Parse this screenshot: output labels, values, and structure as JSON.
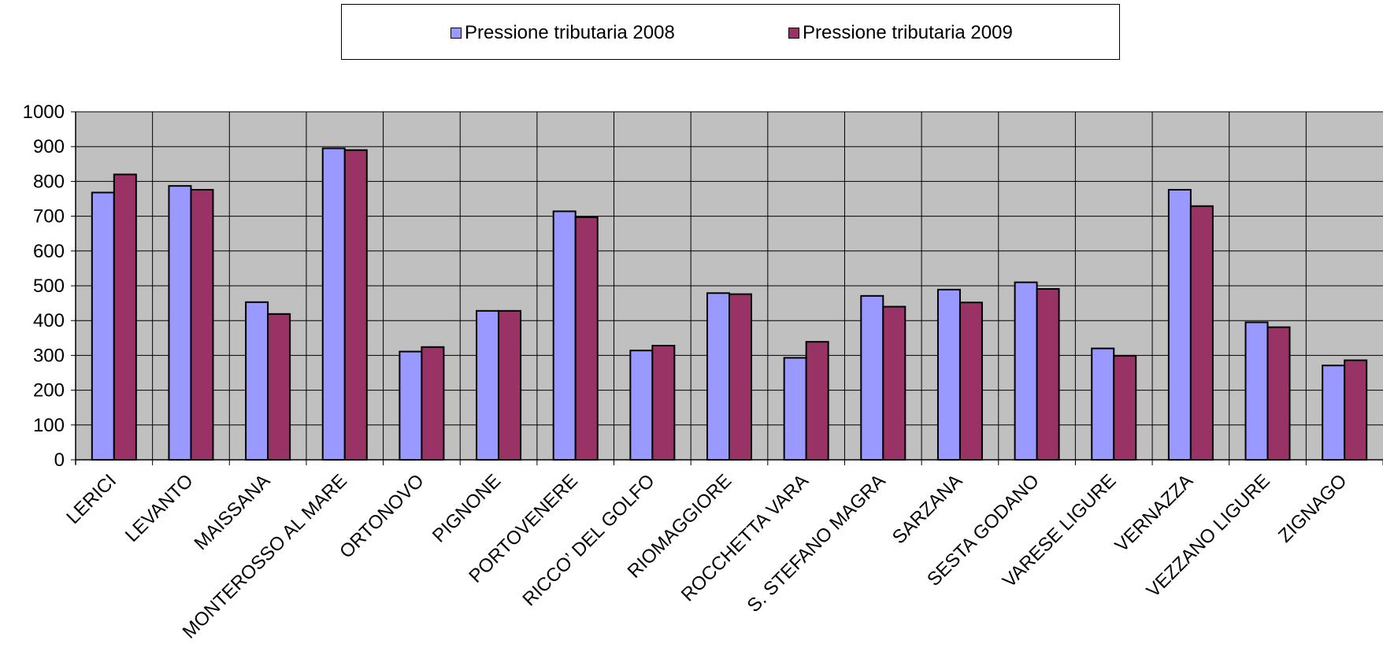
{
  "chart_data": {
    "type": "bar",
    "categories": [
      "LERICI",
      "LEVANTO",
      "MAISSANA",
      "MONTEROSSO AL MARE",
      "ORTONOVO",
      "PIGNONE",
      "PORTOVENERE",
      "RICCO’  DEL GOLFO",
      "RIOMAGGIORE",
      "ROCCHETTA VARA",
      "S. STEFANO MAGRA",
      "SARZANA",
      "SESTA GODANO",
      "VARESE LIGURE",
      "VERNAZZA",
      "VEZZANO LIGURE",
      "ZIGNAGO"
    ],
    "series": [
      {
        "name": "Pressione tributaria 2008",
        "color": "#9999ff",
        "values": [
          768,
          787,
          453,
          895,
          311,
          428,
          714,
          314,
          479,
          293,
          471,
          489,
          510,
          320,
          776,
          395,
          271
        ]
      },
      {
        "name": "Pressione tributaria 2009",
        "color": "#993366",
        "values": [
          820,
          776,
          419,
          890,
          324,
          428,
          697,
          328,
          476,
          339,
          440,
          452,
          491,
          299,
          729,
          381,
          286
        ]
      }
    ],
    "ylim": [
      0,
      1000
    ],
    "yticks": [
      "0",
      "100",
      "200",
      "300",
      "400",
      "500",
      "600",
      "700",
      "800",
      "900",
      "1000"
    ],
    "grid": true,
    "plot_background": "#c0c0c0",
    "legend_position": "top"
  }
}
